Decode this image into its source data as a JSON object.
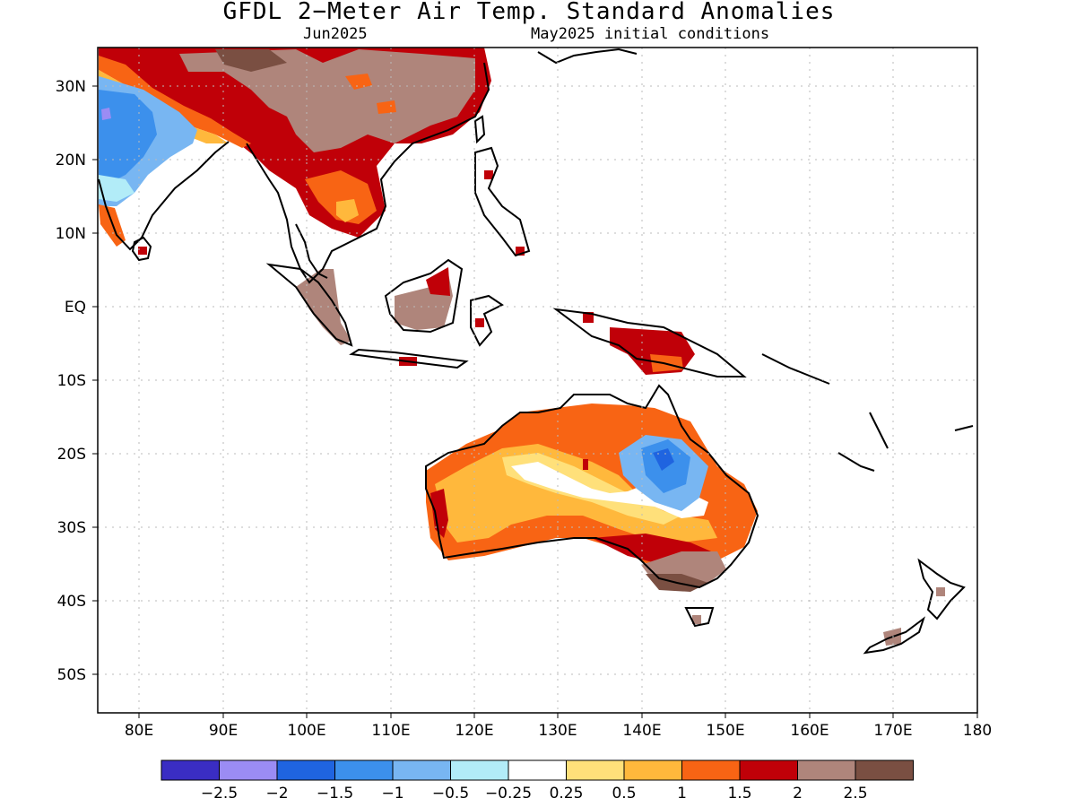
{
  "title": "GFDL 2−Meter Air Temp. Standard Anomalies",
  "valid_month": "Jun2025",
  "init_conditions": "May2025 initial conditions",
  "map": {
    "lon_range": [
      75,
      180
    ],
    "lat_range": [
      -55,
      35
    ],
    "lon_ticks": [
      "80E",
      "90E",
      "100E",
      "110E",
      "120E",
      "130E",
      "140E",
      "150E",
      "160E",
      "170E",
      "180"
    ],
    "lat_ticks": [
      "30N",
      "20N",
      "10N",
      "EQ",
      "10S",
      "20S",
      "30S",
      "40S",
      "50S"
    ],
    "grid": "dotted"
  },
  "colorbar": {
    "labels": [
      "−2.5",
      "−2",
      "−1.5",
      "−1",
      "−0.5",
      "−0.25",
      "0.25",
      "0.5",
      "1",
      "1.5",
      "2",
      "2.5"
    ],
    "colors": [
      "#3a2dc3",
      "#9b8cf4",
      "#1f64e0",
      "#3c90ec",
      "#78b6f2",
      "#b2ecf8",
      "#ffffff",
      "#ffe07a",
      "#ffb83c",
      "#f86414",
      "#c00008",
      "#af857b",
      "#7a4f42"
    ]
  }
}
